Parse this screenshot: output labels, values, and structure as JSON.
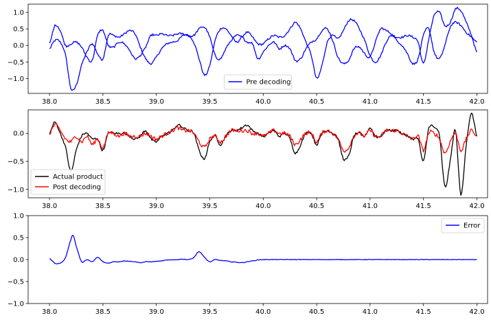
{
  "chart_data": [
    {
      "type": "line",
      "title": "",
      "xlabel": "",
      "ylabel": "",
      "xlim": [
        37.8,
        42.1
      ],
      "ylim": [
        -1.45,
        1.25
      ],
      "xticks": [
        38.0,
        38.5,
        39.0,
        39.5,
        40.0,
        40.5,
        41.0,
        41.5,
        42.0
      ],
      "xtick_labels": [
        "38.0",
        "38.5",
        "39.0",
        "39.5",
        "40.0",
        "40.5",
        "41.0",
        "41.5",
        "42.0"
      ],
      "yticks": [
        -1.0,
        -0.5,
        0.0,
        0.5,
        1.0
      ],
      "ytick_labels": [
        "−1.0",
        "−0.5",
        "0.0",
        "0.5",
        "1.0"
      ],
      "legend_position": "lower center",
      "grid": false,
      "series": [
        {
          "name": "Pre decoding",
          "color": "#0000ff",
          "noise": 0.03,
          "x": [
            38.0,
            38.05,
            38.1,
            38.15,
            38.2,
            38.25,
            38.3,
            38.35,
            38.4,
            38.45,
            38.5,
            38.55,
            38.6,
            38.65,
            38.7,
            38.75,
            38.8,
            38.85,
            38.9,
            38.95,
            39.0,
            39.05,
            39.1,
            39.15,
            39.2,
            39.25,
            39.3,
            39.35,
            39.4,
            39.45,
            39.5,
            39.55,
            39.6,
            39.65,
            39.7,
            39.75,
            39.8,
            39.85,
            39.9,
            39.95,
            40.0,
            40.05,
            40.1,
            40.15,
            40.2,
            40.25,
            40.3,
            40.35,
            40.4,
            40.45,
            40.5,
            40.55,
            40.6,
            40.65,
            40.7,
            40.75,
            40.8,
            40.85,
            40.9,
            40.95,
            41.0,
            41.05,
            41.1,
            41.15,
            41.2,
            41.25,
            41.3,
            41.35,
            41.4,
            41.45,
            41.5,
            41.55,
            41.6,
            41.65,
            41.7,
            41.75,
            41.8,
            41.85,
            41.9,
            41.95,
            42.0
          ],
          "values": [
            -0.1,
            0.15,
            0.1,
            -0.3,
            -1.3,
            -1.2,
            -0.6,
            -0.2,
            0.05,
            -0.25,
            -0.4,
            0.3,
            0.3,
            0.25,
            0.35,
            0.45,
            0.35,
            -0.05,
            -0.4,
            -0.55,
            -0.35,
            -0.1,
            0.05,
            0.1,
            0.15,
            0.3,
            0.3,
            0.1,
            -0.4,
            -0.9,
            -0.6,
            0.15,
            0.5,
            0.5,
            0.3,
            0.1,
            0.25,
            0.4,
            0.25,
            0.05,
            0.05,
            0.2,
            0.3,
            0.25,
            0.3,
            0.5,
            0.7,
            0.5,
            0.1,
            -0.3,
            -1.0,
            -0.6,
            0.1,
            0.3,
            0.2,
            0.45,
            0.75,
            0.75,
            0.5,
            0.15,
            -0.3,
            -0.5,
            -0.3,
            0.1,
            0.3,
            0.25,
            0.25,
            0.3,
            0.25,
            0.1,
            -0.55,
            0.2,
            0.9,
            1.0,
            0.6,
            0.7,
            1.1,
            1.05,
            0.7,
            0.3,
            -0.2
          ]
        },
        {
          "name": "",
          "color": "#0000ff",
          "noise": 0.03,
          "x": [
            38.0,
            38.05,
            38.1,
            38.15,
            38.2,
            38.25,
            38.3,
            38.35,
            38.4,
            38.45,
            38.5,
            38.55,
            38.6,
            38.65,
            38.7,
            38.75,
            38.8,
            38.85,
            38.9,
            38.95,
            39.0,
            39.05,
            39.1,
            39.15,
            39.2,
            39.25,
            39.3,
            39.35,
            39.4,
            39.45,
            39.5,
            39.55,
            39.6,
            39.65,
            39.7,
            39.75,
            39.8,
            39.85,
            39.9,
            39.95,
            40.0,
            40.05,
            40.1,
            40.15,
            40.2,
            40.25,
            40.3,
            40.35,
            40.4,
            40.45,
            40.5,
            40.55,
            40.6,
            40.65,
            40.7,
            40.75,
            40.8,
            40.85,
            40.9,
            40.95,
            41.0,
            41.05,
            41.1,
            41.15,
            41.2,
            41.25,
            41.3,
            41.35,
            41.4,
            41.45,
            41.5,
            41.55,
            41.6,
            41.65,
            41.7,
            41.75,
            41.8,
            41.85,
            41.9,
            41.95,
            42.0
          ],
          "values": [
            0.05,
            0.6,
            0.45,
            0.0,
            0.05,
            0.1,
            -0.05,
            -0.35,
            -0.45,
            0.3,
            0.45,
            0.0,
            -0.05,
            0.1,
            0.05,
            -0.15,
            -0.4,
            -0.3,
            -0.05,
            0.3,
            0.3,
            0.35,
            0.3,
            0.3,
            0.35,
            0.35,
            0.3,
            0.3,
            0.5,
            0.55,
            0.25,
            -0.3,
            -0.4,
            -0.1,
            0.15,
            0.3,
            0.25,
            0.1,
            0.05,
            -0.4,
            -0.2,
            0.0,
            0.1,
            -0.1,
            0.0,
            -0.1,
            -0.45,
            -0.4,
            -0.1,
            0.1,
            0.2,
            0.45,
            0.5,
            0.15,
            -0.35,
            -0.55,
            -0.45,
            -0.1,
            -0.05,
            -0.25,
            -0.35,
            0.1,
            0.5,
            0.45,
            0.35,
            0.15,
            0.0,
            -0.25,
            -0.55,
            -0.4,
            0.3,
            0.5,
            -0.2,
            -0.4,
            0.0,
            0.55,
            0.7,
            0.6,
            0.4,
            0.25,
            0.1
          ]
        }
      ]
    },
    {
      "type": "line",
      "title": "",
      "xlabel": "",
      "ylabel": "",
      "xlim": [
        37.8,
        42.1
      ],
      "ylim": [
        -1.15,
        0.42
      ],
      "xticks": [
        38.0,
        38.5,
        39.0,
        39.5,
        40.0,
        40.5,
        41.0,
        41.5,
        42.0
      ],
      "xtick_labels": [
        "38.0",
        "38.5",
        "39.0",
        "39.5",
        "40.0",
        "40.5",
        "41.0",
        "41.5",
        "42.0"
      ],
      "yticks": [
        -1.0,
        -0.5,
        0.0
      ],
      "ytick_labels": [
        "−1.0",
        "−0.5",
        "0.0"
      ],
      "legend_position": "lower left",
      "grid": false,
      "series": [
        {
          "name": "Actual product",
          "color": "#000000",
          "noise": 0.02,
          "x": [
            38.0,
            38.05,
            38.1,
            38.15,
            38.2,
            38.25,
            38.3,
            38.35,
            38.4,
            38.45,
            38.5,
            38.55,
            38.6,
            38.65,
            38.7,
            38.75,
            38.8,
            38.85,
            38.9,
            38.95,
            39.0,
            39.05,
            39.1,
            39.15,
            39.2,
            39.25,
            39.3,
            39.35,
            39.4,
            39.45,
            39.5,
            39.55,
            39.6,
            39.65,
            39.7,
            39.75,
            39.8,
            39.85,
            39.9,
            39.95,
            40.0,
            40.05,
            40.1,
            40.15,
            40.2,
            40.25,
            40.3,
            40.35,
            40.4,
            40.45,
            40.5,
            40.55,
            40.6,
            40.65,
            40.7,
            40.75,
            40.8,
            40.85,
            40.9,
            40.95,
            41.0,
            41.05,
            41.1,
            41.15,
            41.2,
            41.25,
            41.3,
            41.35,
            41.4,
            41.45,
            41.5,
            41.55,
            41.6,
            41.65,
            41.7,
            41.75,
            41.8,
            41.85,
            41.9,
            41.95,
            42.0
          ],
          "values": [
            0.0,
            0.2,
            0.0,
            -0.25,
            -0.68,
            -0.3,
            -0.05,
            0.0,
            -0.1,
            -0.1,
            -0.3,
            0.0,
            0.0,
            0.0,
            0.0,
            -0.05,
            -0.1,
            -0.05,
            0.05,
            -0.1,
            -0.15,
            -0.05,
            0.0,
            0.05,
            0.15,
            0.1,
            0.05,
            0.0,
            -0.3,
            -0.45,
            -0.15,
            -0.05,
            -0.2,
            -0.05,
            0.05,
            0.05,
            0.1,
            0.15,
            0.05,
            0.0,
            -0.05,
            0.0,
            0.05,
            -0.05,
            0.0,
            -0.1,
            -0.35,
            -0.2,
            0.0,
            0.0,
            -0.2,
            0.0,
            0.05,
            0.0,
            -0.1,
            -0.45,
            -0.4,
            -0.05,
            0.0,
            -0.05,
            0.1,
            -0.05,
            -0.05,
            0.05,
            0.05,
            0.05,
            0.0,
            -0.05,
            -0.1,
            -0.1,
            -0.5,
            0.1,
            0.1,
            -0.05,
            -0.95,
            -0.5,
            0.05,
            -1.1,
            -0.2,
            0.35,
            -0.05
          ]
        },
        {
          "name": "Post decoding",
          "color": "#ff0000",
          "noise": 0.035,
          "x": [
            38.0,
            38.05,
            38.1,
            38.15,
            38.2,
            38.25,
            38.3,
            38.35,
            38.4,
            38.45,
            38.5,
            38.55,
            38.6,
            38.65,
            38.7,
            38.75,
            38.8,
            38.85,
            38.9,
            38.95,
            39.0,
            39.05,
            39.1,
            39.15,
            39.2,
            39.25,
            39.3,
            39.35,
            39.4,
            39.45,
            39.5,
            39.55,
            39.6,
            39.65,
            39.7,
            39.75,
            39.8,
            39.85,
            39.9,
            39.95,
            40.0,
            40.05,
            40.1,
            40.15,
            40.2,
            40.25,
            40.3,
            40.35,
            40.4,
            40.45,
            40.5,
            40.55,
            40.6,
            40.65,
            40.7,
            40.75,
            40.8,
            40.85,
            40.9,
            40.95,
            41.0,
            41.05,
            41.1,
            41.15,
            41.2,
            41.25,
            41.3,
            41.35,
            41.4,
            41.45,
            41.5,
            41.55,
            41.6,
            41.65,
            41.7,
            41.75,
            41.8,
            41.85,
            41.9,
            41.95,
            42.0
          ],
          "values": [
            0.0,
            0.15,
            0.05,
            -0.1,
            -0.15,
            -0.05,
            -0.15,
            -0.05,
            -0.2,
            -0.1,
            -0.25,
            0.0,
            0.0,
            -0.05,
            0.0,
            -0.05,
            -0.05,
            -0.05,
            0.0,
            -0.05,
            -0.1,
            -0.05,
            0.0,
            0.05,
            0.1,
            0.05,
            0.05,
            0.0,
            -0.15,
            -0.25,
            -0.1,
            -0.05,
            -0.15,
            -0.05,
            0.05,
            0.05,
            0.05,
            0.05,
            0.0,
            0.0,
            -0.05,
            0.0,
            0.05,
            0.0,
            0.0,
            -0.05,
            -0.2,
            -0.1,
            0.0,
            0.0,
            -0.15,
            0.0,
            0.05,
            0.0,
            -0.1,
            -0.3,
            -0.25,
            -0.05,
            0.0,
            -0.05,
            0.05,
            -0.05,
            -0.05,
            0.05,
            0.05,
            0.05,
            0.0,
            -0.05,
            -0.1,
            -0.05,
            -0.3,
            0.0,
            0.0,
            -0.1,
            -0.35,
            -0.15,
            0.0,
            -0.3,
            -0.1,
            0.05,
            -0.05
          ]
        }
      ]
    },
    {
      "type": "line",
      "title": "",
      "xlabel": "",
      "ylabel": "",
      "xlim": [
        37.8,
        42.1
      ],
      "ylim": [
        -1.0,
        1.0
      ],
      "xticks": [
        38.0,
        38.5,
        39.0,
        39.5,
        40.0,
        40.5,
        41.0,
        41.5,
        42.0
      ],
      "xtick_labels": [
        "38.0",
        "38.5",
        "39.0",
        "39.5",
        "40.0",
        "40.5",
        "41.0",
        "41.5",
        "42.0"
      ],
      "yticks": [
        -1.0,
        -0.5,
        0.0,
        0.5,
        1.0
      ],
      "ytick_labels": [
        "−1.0",
        "−0.5",
        "0.0",
        "0.5",
        "1.0"
      ],
      "legend_position": "upper right",
      "grid": false,
      "series": [
        {
          "name": "Error",
          "color": "#0000ff",
          "noise": 0.006,
          "x": [
            38.0,
            38.05,
            38.1,
            38.15,
            38.2,
            38.22,
            38.25,
            38.3,
            38.35,
            38.4,
            38.45,
            38.5,
            38.55,
            38.6,
            38.65,
            38.7,
            38.75,
            38.8,
            38.85,
            38.9,
            38.95,
            39.0,
            39.05,
            39.1,
            39.15,
            39.2,
            39.25,
            39.3,
            39.35,
            39.4,
            39.45,
            39.5,
            39.55,
            39.6,
            39.65,
            39.7,
            39.75,
            39.8,
            39.85,
            39.9,
            39.95,
            40.0,
            40.5,
            41.0,
            41.5,
            42.0
          ],
          "values": [
            0.02,
            -0.08,
            -0.08,
            0.05,
            0.45,
            0.55,
            0.3,
            -0.05,
            0.0,
            -0.05,
            0.05,
            -0.05,
            -0.08,
            -0.05,
            -0.05,
            -0.03,
            -0.04,
            -0.05,
            -0.07,
            -0.05,
            -0.05,
            -0.04,
            -0.03,
            -0.01,
            -0.01,
            0.0,
            0.01,
            0.0,
            0.05,
            0.18,
            0.05,
            -0.05,
            0.0,
            -0.02,
            -0.03,
            -0.05,
            -0.06,
            -0.07,
            -0.05,
            -0.03,
            -0.01,
            0.0,
            0.0,
            0.0,
            0.0,
            0.0
          ]
        }
      ]
    }
  ]
}
